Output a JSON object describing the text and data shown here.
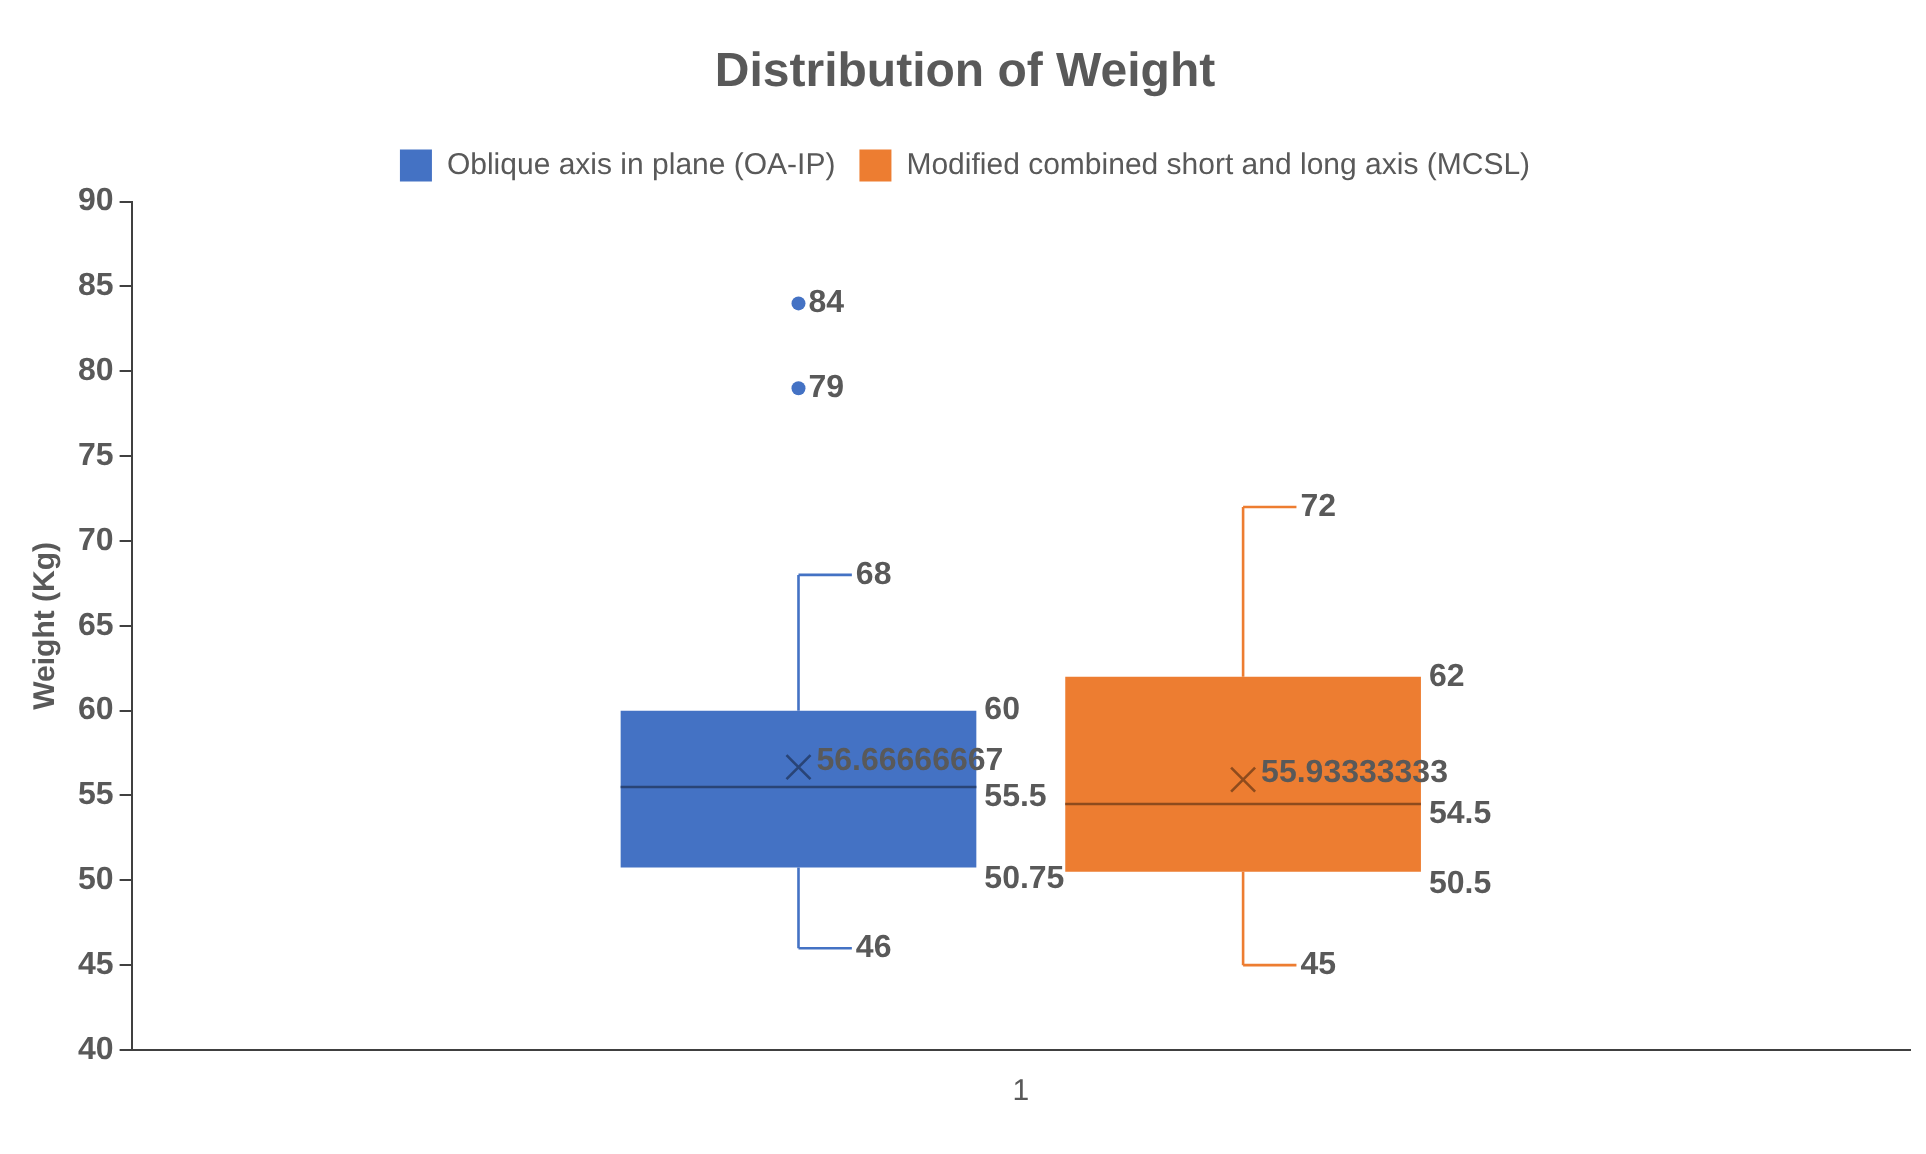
{
  "chart_data": {
    "type": "box",
    "title": "Distribution of Weight",
    "ylabel": "Weight (Kg)",
    "categories": [
      "1"
    ],
    "series": [
      {
        "name": "Oblique axis in plane (OA-IP)",
        "color": "#4472c4",
        "boxes": [
          {
            "low": 46,
            "q1": 50.75,
            "median": 55.5,
            "q3": 60,
            "high": 68,
            "mean": 56.66666667,
            "outliers": [
              79,
              84
            ]
          }
        ]
      },
      {
        "name": "Modified combined short and long axis (MCSL)",
        "color": "#ed7d31",
        "boxes": [
          {
            "low": 45,
            "q1": 50.5,
            "median": 54.5,
            "q3": 62,
            "high": 72,
            "mean": 55.93333333
          }
        ]
      }
    ],
    "annotations": [
      "56.66666667",
      "79",
      "84",
      "68",
      "46",
      "60",
      "55.5",
      "50.75",
      "55.93333333",
      "72",
      "45",
      "62",
      "54.5",
      "50.5"
    ],
    "ylim": [
      40,
      90
    ],
    "yticks": [
      40,
      45,
      50,
      55,
      60,
      65,
      70,
      75,
      80,
      85,
      90
    ],
    "grid": false,
    "legend": "top"
  }
}
